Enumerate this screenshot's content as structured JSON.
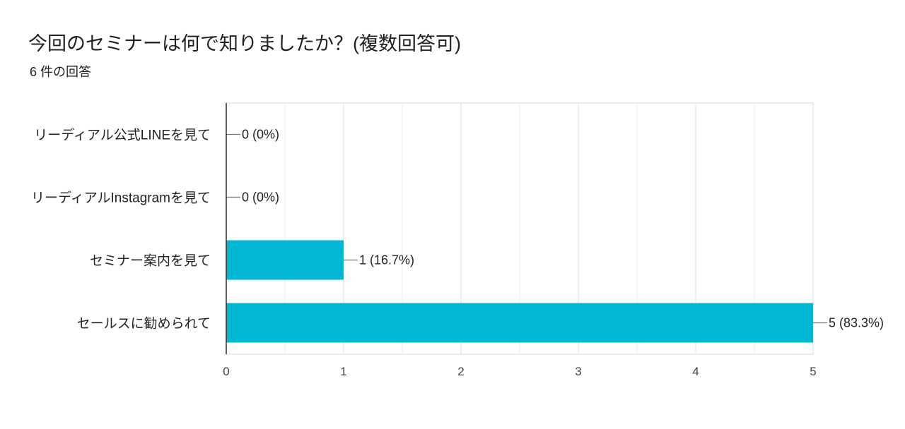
{
  "header": {
    "title": "今回のセミナーは何で知りましたか？(複数回答可)",
    "response_count": "6 件の回答"
  },
  "colors": {
    "bar": "#00b8d4",
    "grid": "#e8e8e8",
    "axis": "#333333"
  },
  "chart_data": {
    "type": "bar",
    "orientation": "horizontal",
    "categories": [
      "リーディアル公式LINEを見て",
      "リーディアルInstagramを見て",
      "セミナー案内を見て",
      "セールスに勧められて"
    ],
    "values": [
      0,
      0,
      1,
      5
    ],
    "value_labels": [
      "0 (0%)",
      "0 (0%)",
      "1 (16.7%)",
      "5 (83.3%)"
    ],
    "xlim": [
      0,
      5
    ],
    "xticks": [
      "0",
      "1",
      "2",
      "3",
      "4",
      "5"
    ],
    "grid": true,
    "legend": "none"
  }
}
